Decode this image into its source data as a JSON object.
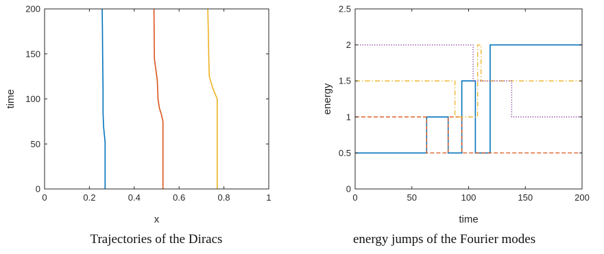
{
  "chart_data": [
    {
      "type": "line",
      "caption": "Trajectories of the Diracs",
      "xlabel": "x",
      "ylabel": "time",
      "xlim": [
        0,
        1
      ],
      "ylim": [
        0,
        200
      ],
      "xticks": [
        0,
        0.2,
        0.4,
        0.6,
        0.8,
        1
      ],
      "xtick_labels": [
        "0",
        "0.2",
        "0.4",
        "0.6",
        "0.8",
        "1"
      ],
      "yticks": [
        0,
        50,
        100,
        150,
        200
      ],
      "ytick_labels": [
        "0",
        "50",
        "100",
        "150",
        "200"
      ],
      "grid": false,
      "series": [
        {
          "color": "#0072BD",
          "style": "solid",
          "points": [
            [
              0.27,
              0
            ],
            [
              0.27,
              52
            ],
            [
              0.266,
              62
            ],
            [
              0.263,
              70
            ],
            [
              0.261,
              85
            ],
            [
              0.261,
              110
            ],
            [
              0.259,
              150
            ],
            [
              0.258,
              180
            ],
            [
              0.257,
              200
            ]
          ]
        },
        {
          "color": "#D95319",
          "style": "solid",
          "points": [
            [
              0.528,
              0
            ],
            [
              0.528,
              75
            ],
            [
              0.522,
              82
            ],
            [
              0.512,
              90
            ],
            [
              0.506,
              100
            ],
            [
              0.503,
              120
            ],
            [
              0.498,
              130
            ],
            [
              0.494,
              137
            ],
            [
              0.49,
              145
            ],
            [
              0.489,
              170
            ],
            [
              0.488,
              200
            ]
          ]
        },
        {
          "color": "#EDB120",
          "style": "solid",
          "points": [
            [
              0.77,
              0
            ],
            [
              0.77,
              100
            ],
            [
              0.75,
              112
            ],
            [
              0.735,
              125
            ],
            [
              0.732,
              150
            ],
            [
              0.73,
              180
            ],
            [
              0.728,
              200
            ]
          ]
        }
      ]
    },
    {
      "type": "line",
      "caption": "energy jumps of the Fourier modes",
      "xlabel": "time",
      "ylabel": "energy",
      "xlim": [
        0,
        200
      ],
      "ylim": [
        0,
        2.5
      ],
      "xticks": [
        0,
        50,
        100,
        150,
        200
      ],
      "xtick_labels": [
        "0",
        "50",
        "100",
        "150",
        "200"
      ],
      "yticks": [
        0,
        0.5,
        1,
        1.5,
        2,
        2.5
      ],
      "ytick_labels": [
        "0",
        "0.5",
        "1",
        "1.5",
        "2",
        "2.5"
      ],
      "grid": false,
      "series": [
        {
          "color": "#0072BD",
          "style": "solid",
          "points": [
            [
              0,
              0.5
            ],
            [
              63,
              0.5
            ],
            [
              63,
              1
            ],
            [
              82,
              1
            ],
            [
              82,
              0.5
            ],
            [
              94,
              0.5
            ],
            [
              94,
              1.5
            ],
            [
              106,
              1.5
            ],
            [
              106,
              0.5
            ],
            [
              119,
              0.5
            ],
            [
              119,
              2
            ],
            [
              200,
              2
            ]
          ]
        },
        {
          "color": "#D95319",
          "style": "dashed",
          "points": [
            [
              0,
              1
            ],
            [
              63,
              1
            ],
            [
              63,
              0.5
            ],
            [
              82,
              0.5
            ],
            [
              82,
              1
            ],
            [
              94,
              1
            ],
            [
              94,
              0.5
            ],
            [
              200,
              0.5
            ]
          ]
        },
        {
          "color": "#EDB120",
          "style": "dashdot",
          "points": [
            [
              0,
              1.5
            ],
            [
              88,
              1.5
            ],
            [
              88,
              1
            ],
            [
              108,
              1
            ],
            [
              108,
              2
            ],
            [
              111,
              2
            ],
            [
              111,
              1.5
            ],
            [
              200,
              1.5
            ]
          ]
        },
        {
          "color": "#7E2F8E",
          "style": "dotted",
          "points": [
            [
              0,
              2
            ],
            [
              104,
              2
            ],
            [
              104,
              1.5
            ],
            [
              138,
              1.5
            ],
            [
              138,
              1
            ],
            [
              200,
              1
            ]
          ]
        }
      ]
    }
  ]
}
